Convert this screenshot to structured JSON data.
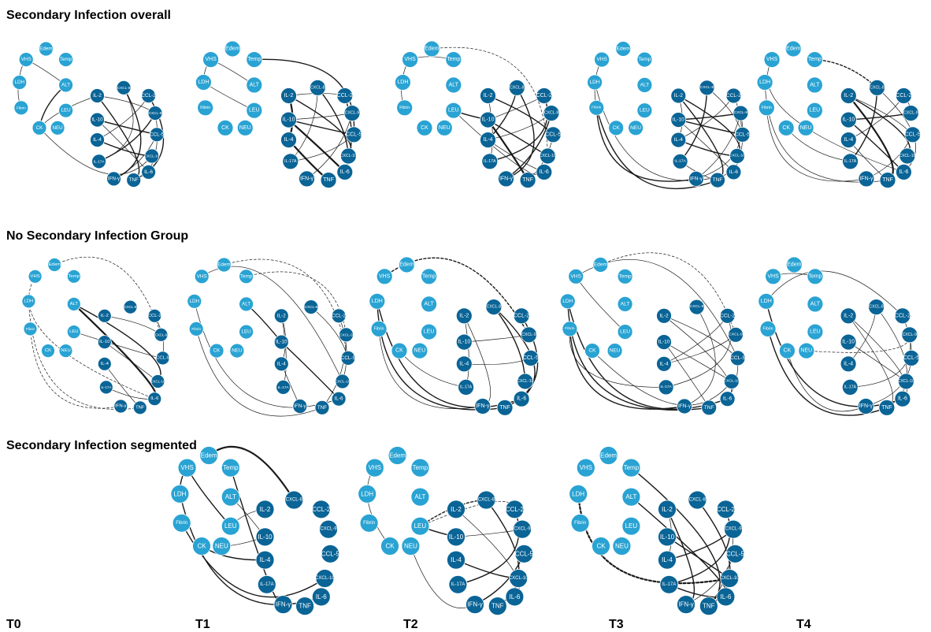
{
  "sections": [
    {
      "id": "overall",
      "title": "Secondary Infection overall"
    },
    {
      "id": "none",
      "title": "No Secondary Infection Group"
    },
    {
      "id": "segmented",
      "title": "Secondary Infection segmented"
    }
  ],
  "time_labels": [
    "T0",
    "T1",
    "T2",
    "T3",
    "T4"
  ],
  "node_groups": {
    "clinical": {
      "color": "#29a3d3",
      "labels": [
        "VHS",
        "Edem",
        "Temp",
        "ALT",
        "LDH",
        "LEU",
        "Fibrin",
        "CK",
        "NEU"
      ]
    },
    "cytokine": {
      "color": "#0a6496",
      "labels": [
        "IL-2",
        "CXCL-8",
        "CCL-2",
        "IL-10",
        "CXCL-9",
        "IL-4",
        "CCL-5",
        "IL-17A",
        "CXCL-10",
        "IFN-γ",
        "TNF",
        "IL-6"
      ]
    }
  },
  "panels": [
    {
      "section": "overall",
      "time": "T0"
    },
    {
      "section": "overall",
      "time": "T1"
    },
    {
      "section": "overall",
      "time": "T2"
    },
    {
      "section": "overall",
      "time": "T3"
    },
    {
      "section": "overall",
      "time": "T4"
    },
    {
      "section": "none",
      "time": "T0"
    },
    {
      "section": "none",
      "time": "T1"
    },
    {
      "section": "none",
      "time": "T2"
    },
    {
      "section": "none",
      "time": "T3"
    },
    {
      "section": "none",
      "time": "T4"
    },
    {
      "section": "segmented",
      "time": "T1"
    },
    {
      "section": "segmented",
      "time": "T2"
    },
    {
      "section": "segmented",
      "time": "T3"
    }
  ]
}
